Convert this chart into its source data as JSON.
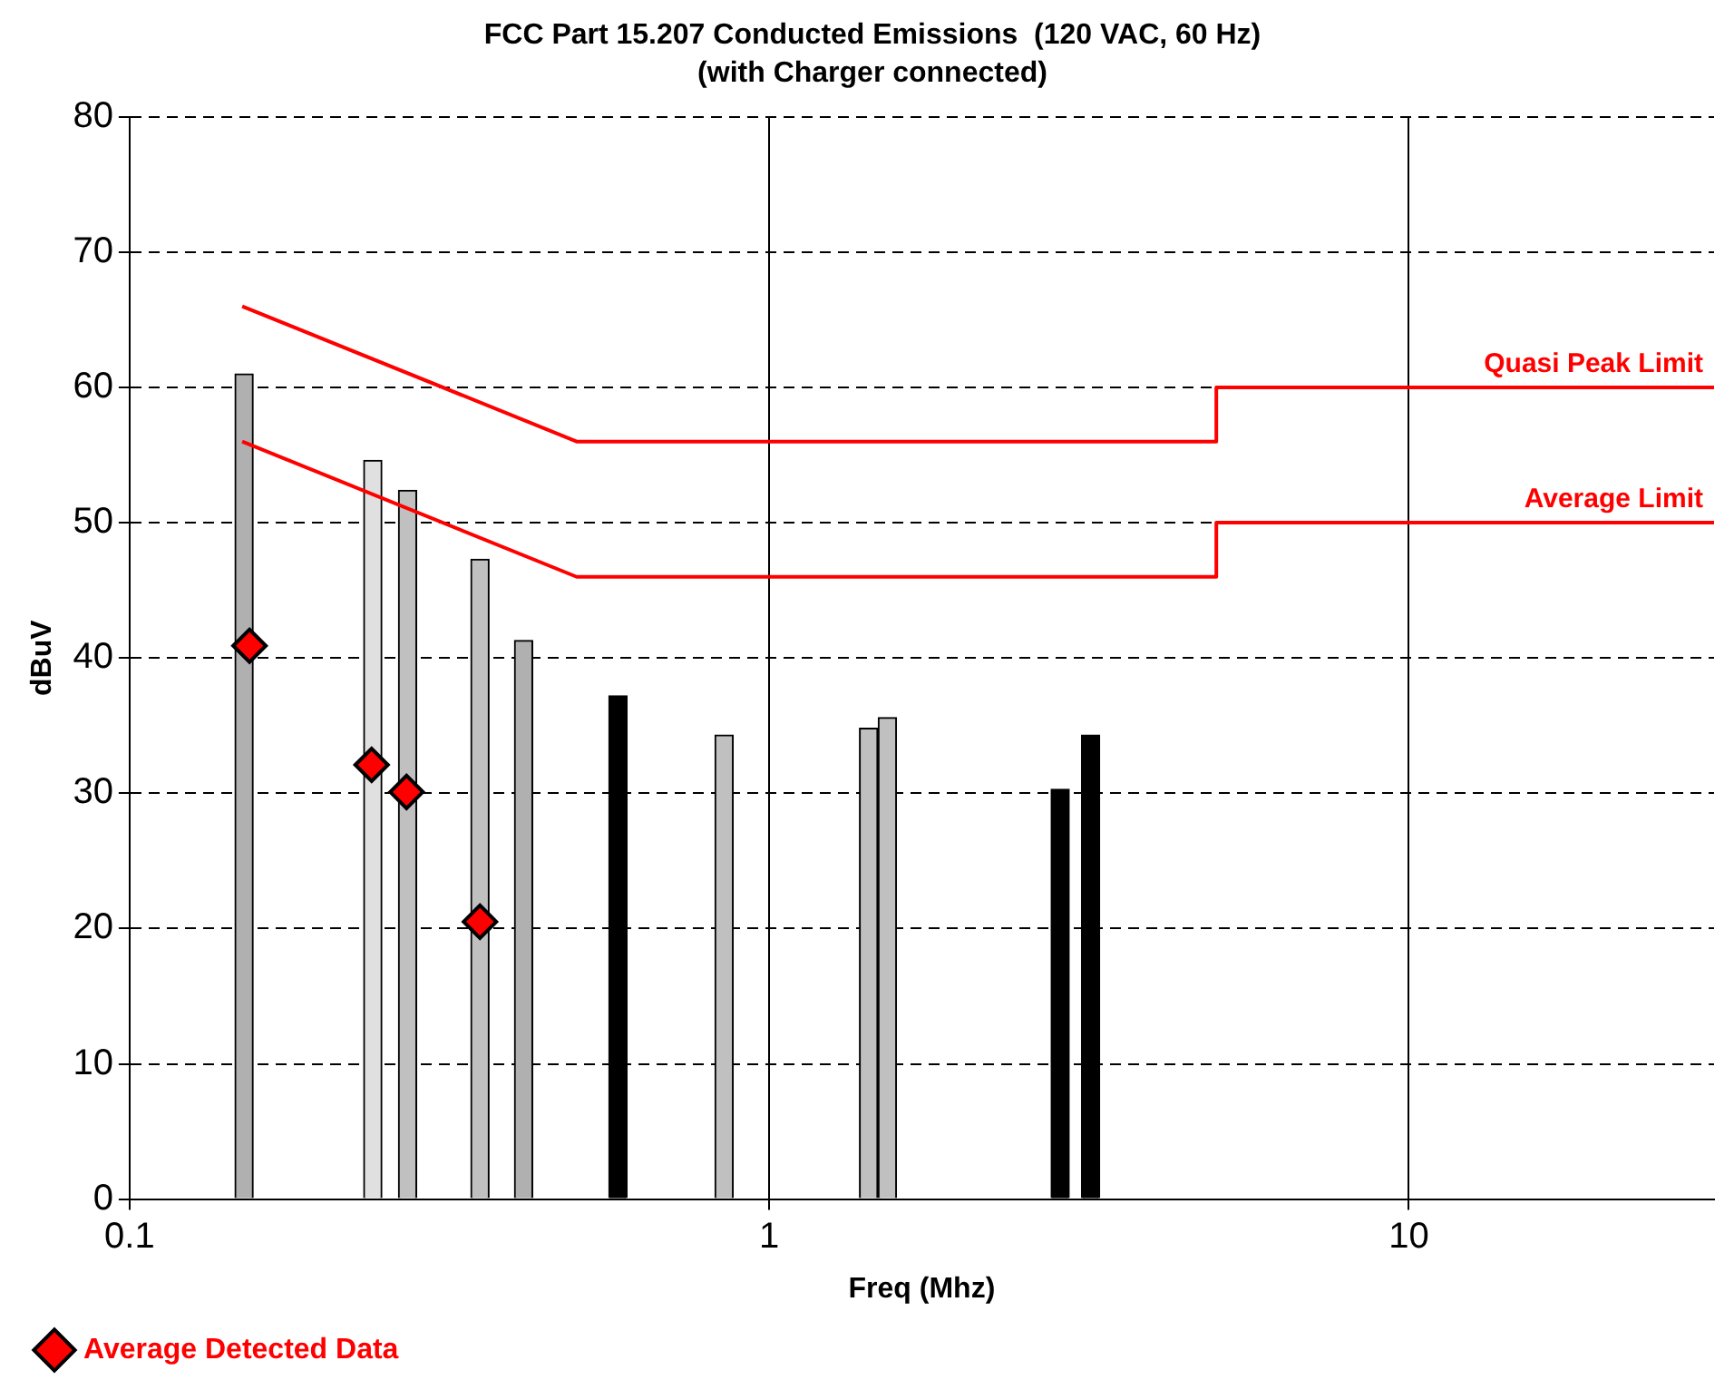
{
  "chart_data": {
    "type": "bar",
    "title": "FCC Part 15.207 Conducted Emissions  (120 VAC, 60 Hz)",
    "subtitle": "(with Charger connected)",
    "xlabel": "Freq (Mhz)",
    "ylabel": "dBuV",
    "log": "x",
    "xlim": [
      0.1,
      30
    ],
    "xticks": [
      0.1,
      1,
      10
    ],
    "ylim": [
      0,
      80
    ],
    "yticks": [
      0,
      10,
      20,
      30,
      40,
      50,
      60,
      70,
      80
    ],
    "grid": true,
    "legend": "bottom",
    "series": [
      {
        "x": [
          0.151,
          0.24,
          0.272,
          0.353,
          0.413,
          0.58,
          0.85,
          1.43,
          1.53,
          2.85,
          3.18
        ],
        "values": [
          61,
          54.6,
          52.4,
          47.3,
          41.3,
          37.2,
          34.3,
          34.8,
          35.6,
          30.3,
          34.3
        ],
        "colors": [
          "#b0b0b0",
          "#e0e0e0",
          "#c0c0c0",
          "#c0c0c0",
          "#b0b0b0",
          "#000000",
          "#c0c0c0",
          "#c0c0c0",
          "#c0c0c0",
          "#000000",
          "#000000"
        ]
      },
      {
        "type": "scatter",
        "name": "Average Detected Data",
        "color": "#ff0000",
        "marker": "diamond",
        "x": [
          0.154,
          0.239,
          0.271,
          0.353
        ],
        "values": [
          40.9,
          32.1,
          30.1,
          20.5
        ]
      },
      {
        "type": "line",
        "name": "Quasi Peak Limit",
        "color": "#ff0000",
        "x": [
          0.15,
          0.5,
          0.5,
          5,
          5,
          30
        ],
        "values": [
          66,
          56,
          56,
          56,
          60,
          60
        ]
      },
      {
        "type": "line",
        "name": "Average Limit",
        "color": "#ff0000",
        "x": [
          0.15,
          0.5,
          0.5,
          5,
          5,
          30
        ],
        "values": [
          56,
          46,
          46,
          46,
          50,
          50
        ]
      }
    ]
  }
}
